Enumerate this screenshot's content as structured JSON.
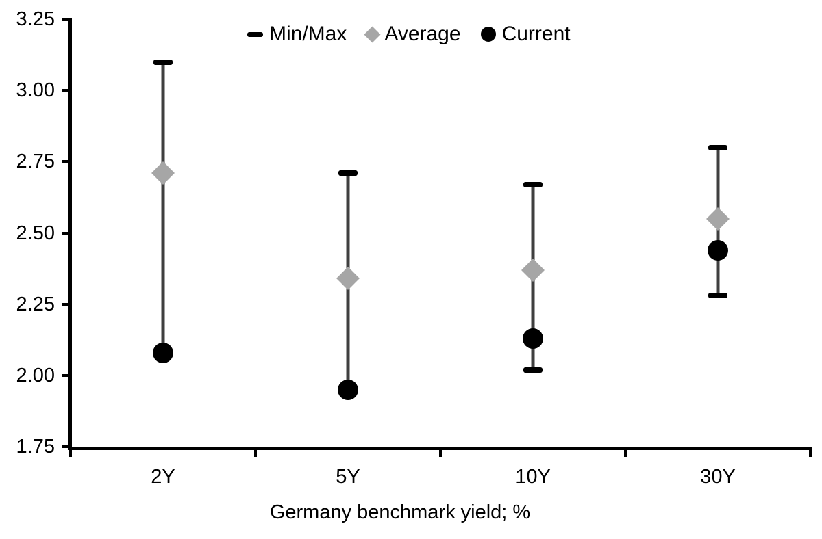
{
  "chart_data": {
    "type": "scatter",
    "subtype": "min-max-range-with-markers",
    "title": "",
    "xlabel": "Germany benchmark yield; %",
    "ylabel": "",
    "categories": [
      "2Y",
      "5Y",
      "10Y",
      "30Y"
    ],
    "series": [
      {
        "name": "Min/Max",
        "role": "range",
        "min": [
          2.08,
          1.95,
          2.02,
          2.28
        ],
        "max": [
          3.1,
          2.71,
          2.67,
          2.8
        ]
      },
      {
        "name": "Average",
        "role": "diamond-marker",
        "values": [
          2.71,
          2.34,
          2.37,
          2.55
        ]
      },
      {
        "name": "Current",
        "role": "circle-marker",
        "values": [
          2.08,
          1.95,
          2.13,
          2.44
        ]
      }
    ],
    "ylim": [
      1.75,
      3.25
    ],
    "yticks": [
      3.25,
      3.0,
      2.75,
      2.5,
      2.25,
      2.0,
      1.75
    ],
    "ytick_format": "2dp",
    "grid": false,
    "legend_position": "top-center",
    "colors": {
      "range_cap": "#000000",
      "range_line": "#3f3f3f",
      "average": "#a6a6a6",
      "current": "#000000",
      "axis": "#000000",
      "text": "#000000"
    }
  }
}
